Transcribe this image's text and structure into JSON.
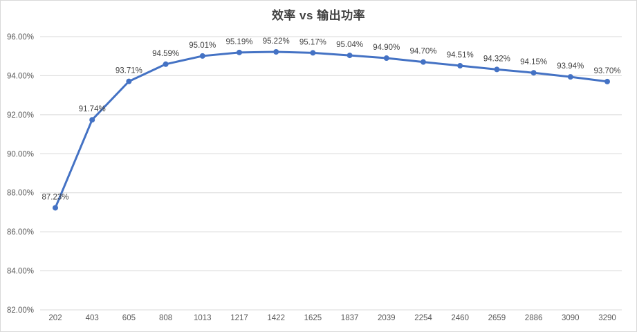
{
  "chart_data": {
    "type": "line",
    "title": "效率 vs 输出功率",
    "xlabel": "",
    "ylabel": "",
    "categories": [
      "202",
      "403",
      "605",
      "808",
      "1013",
      "1217",
      "1422",
      "1625",
      "1837",
      "2039",
      "2254",
      "2460",
      "2659",
      "2886",
      "3090",
      "3290"
    ],
    "series": [
      {
        "name": "效率",
        "values": [
          87.23,
          91.74,
          93.71,
          94.59,
          95.01,
          95.19,
          95.22,
          95.17,
          95.04,
          94.9,
          94.7,
          94.51,
          94.32,
          94.15,
          93.94,
          93.7
        ],
        "data_labels": [
          "87.23%",
          "91.74%",
          "93.71%",
          "94.59%",
          "95.01%",
          "95.19%",
          "95.22%",
          "95.17%",
          "95.04%",
          "94.90%",
          "94.70%",
          "94.51%",
          "94.32%",
          "94.15%",
          "93.94%",
          "93.70%"
        ]
      }
    ],
    "ylim": [
      82,
      96
    ],
    "ytick_step": 2,
    "ytick_labels": [
      "82.00%",
      "84.00%",
      "86.00%",
      "88.00%",
      "90.00%",
      "92.00%",
      "94.00%",
      "96.00%"
    ],
    "grid": true,
    "legend": "none",
    "marker": "circle",
    "colors": {
      "line": "#4472C4",
      "marker": "#4472C4",
      "gridline": "#D9D9D9",
      "axis_label": "#595959",
      "data_label": "#404040",
      "title": "#404040",
      "background": "#FFFFFF",
      "border": "#D9D9D9"
    }
  }
}
